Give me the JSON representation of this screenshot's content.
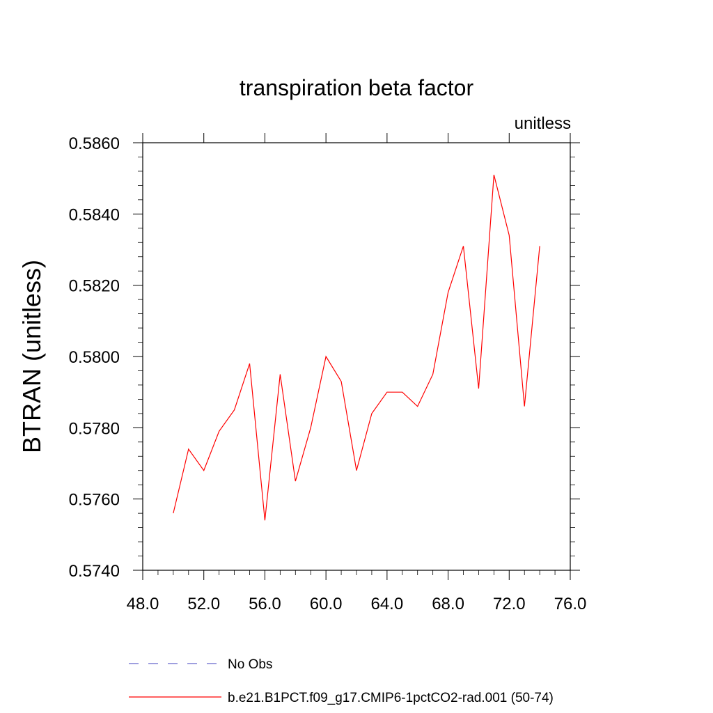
{
  "chart_data": {
    "type": "line",
    "title": "transpiration beta factor",
    "units_label": "unitless",
    "ylabel": "BTRAN  (unitless)",
    "xlabel": "",
    "xlim": [
      48,
      76
    ],
    "ylim": [
      0.574,
      0.586
    ],
    "x_ticks": [
      48,
      52,
      56,
      60,
      64,
      68,
      72,
      76
    ],
    "x_tick_labels": [
      "48.0",
      "52.0",
      "56.0",
      "60.0",
      "64.0",
      "68.0",
      "72.0",
      "76.0"
    ],
    "y_ticks": [
      0.574,
      0.576,
      0.578,
      0.58,
      0.582,
      0.584,
      0.586
    ],
    "y_tick_labels": [
      "0.5740",
      "0.5760",
      "0.5780",
      "0.5800",
      "0.5820",
      "0.5840",
      "0.5860"
    ],
    "grid": false,
    "legend_position": "bottom",
    "series": [
      {
        "name": "b.e21.B1PCT.f09_g17.CMIP6-1pctCO2-rad.001 (50-74)",
        "color": "#ff0000",
        "dash": "solid",
        "x": [
          50,
          51,
          52,
          53,
          54,
          55,
          56,
          57,
          58,
          59,
          60,
          61,
          62,
          63,
          64,
          65,
          66,
          67,
          68,
          69,
          70,
          71,
          72,
          73,
          74
        ],
        "y": [
          0.5756,
          0.5774,
          0.5768,
          0.5779,
          0.5785,
          0.5798,
          0.5754,
          0.5795,
          0.5765,
          0.578,
          0.58,
          0.5793,
          0.5768,
          0.5784,
          0.579,
          0.579,
          0.5786,
          0.5795,
          0.5818,
          0.5831,
          0.5791,
          0.5851,
          0.5834,
          0.5786,
          0.5831
        ]
      }
    ],
    "legend": [
      {
        "label": "No Obs",
        "color": "#6666cc",
        "dash": "dashed"
      },
      {
        "label": "b.e21.B1PCT.f09_g17.CMIP6-1pctCO2-rad.001 (50-74)",
        "color": "#ff0000",
        "dash": "solid"
      }
    ]
  }
}
